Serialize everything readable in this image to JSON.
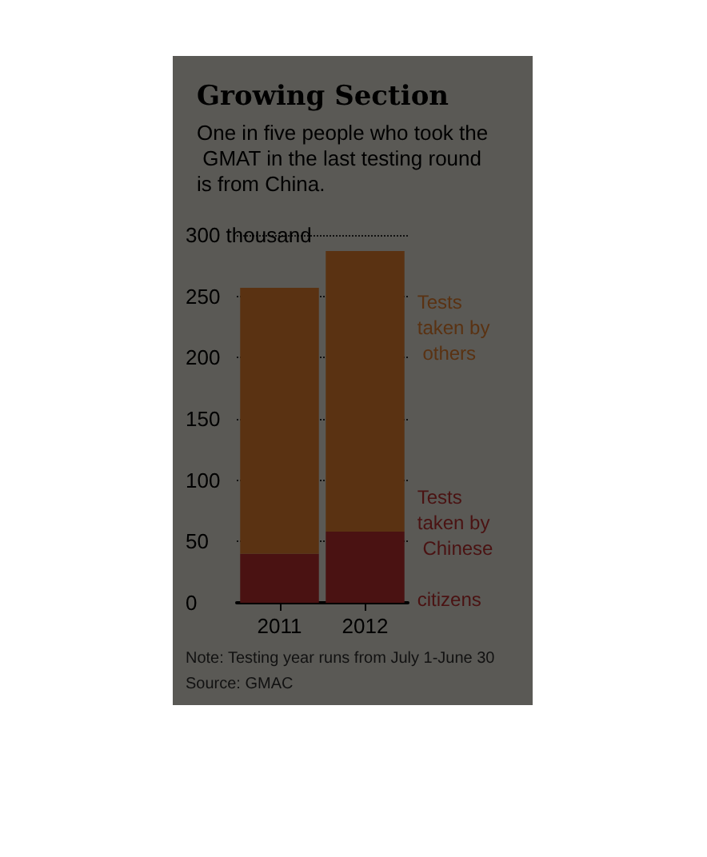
{
  "chart_data": {
    "type": "bar",
    "title": "Growing Section",
    "subtitle": "One in five people who took the GMAT in the last testing round is from China.",
    "categories": [
      "2011",
      "2012"
    ],
    "stacked": true,
    "series": [
      {
        "name": "Tests taken by Chinese citizens",
        "color": "#4a1212",
        "values": [
          40,
          58
        ]
      },
      {
        "name": "Tests taken by others",
        "color": "#5a3212",
        "values": [
          217,
          229
        ]
      }
    ],
    "ylim": [
      0,
      300
    ],
    "yticks": [
      0,
      50,
      100,
      150,
      200,
      250,
      {
        "value": 300,
        "label": "300 thousand"
      }
    ],
    "grid": "y",
    "legend": false,
    "annotations": [
      "Note: Testing year runs from July 1-June 30",
      "Source: GMAC"
    ]
  }
}
